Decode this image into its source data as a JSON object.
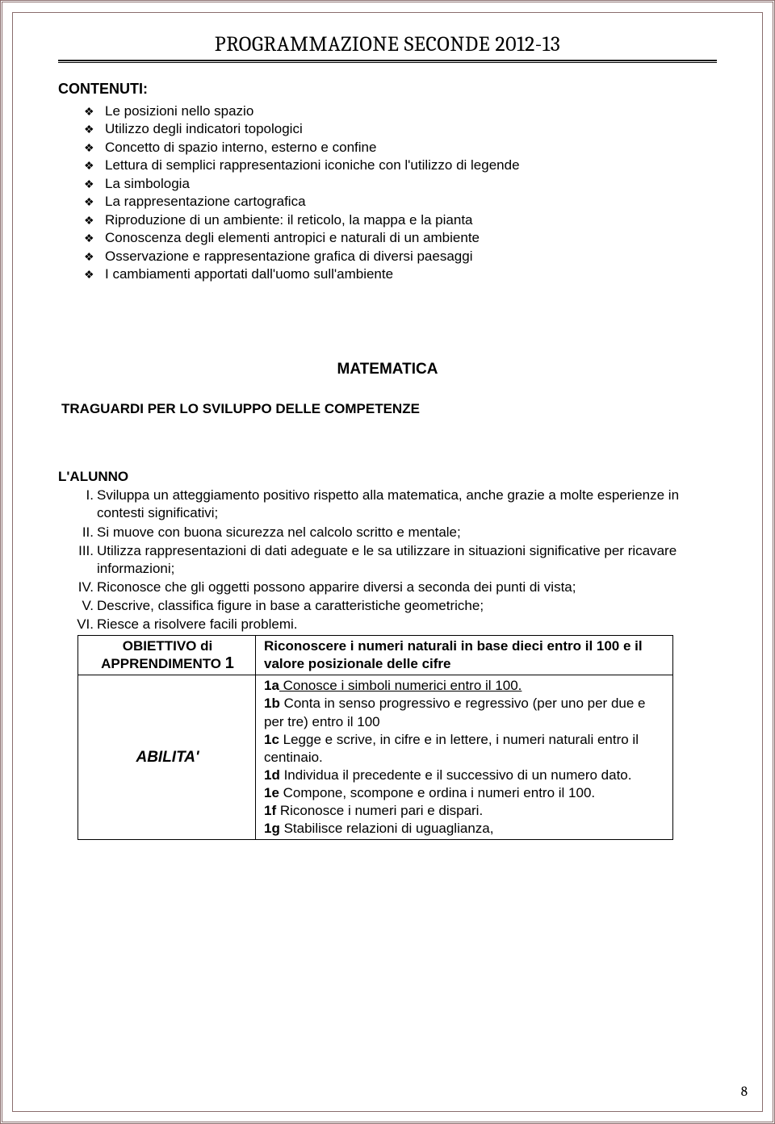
{
  "header": {
    "title": "PROGRAMMAZIONE SECONDE 2012-13"
  },
  "contenuti": {
    "heading": "CONTENUTI:",
    "items": [
      "Le posizioni nello spazio",
      "Utilizzo degli indicatori topologici",
      "Concetto di spazio interno, esterno e confine",
      "Lettura di semplici rappresentazioni iconiche con l'utilizzo di legende",
      "La simbologia",
      "La rappresentazione cartografica",
      "Riproduzione di un ambiente: il reticolo, la mappa e la pianta",
      "Conoscenza degli elementi antropici e naturali di un ambiente",
      "Osservazione e rappresentazione grafica di diversi paesaggi",
      "I cambiamenti apportati dall'uomo sull'ambiente"
    ]
  },
  "matematica": {
    "heading": "MATEMATICA",
    "subheading": "TRAGUARDI PER LO SVILUPPO DELLE COMPETENZE",
    "alunno_heading": "L'ALUNNO",
    "roman": [
      {
        "num": "I.",
        "text": "Sviluppa un atteggiamento positivo rispetto alla matematica, anche grazie a molte esperienze in contesti significativi;"
      },
      {
        "num": "II.",
        "text": "Si muove con buona sicurezza nel calcolo scritto e mentale;"
      },
      {
        "num": "III.",
        "text": "Utilizza rappresentazioni di dati adeguate e le sa utilizzare in situazioni significative per ricavare informazioni;"
      },
      {
        "num": "IV.",
        "text": "Riconosce che gli oggetti possono apparire diversi a seconda dei punti di vista;"
      },
      {
        "num": "V.",
        "text": "Descrive, classifica figure in base a caratteristiche geometriche;"
      },
      {
        "num": "VI.",
        "text": "Riesce a risolvere facili problemi."
      }
    ],
    "table": {
      "row1": {
        "left_line1": "OBIETTIVO di",
        "left_line2_a": "APPRENDIMENTO ",
        "left_line2_b": "1",
        "right": "Riconoscere i numeri naturali in base dieci entro il 100 e il valore posizionale delle cifre"
      },
      "row2": {
        "left": "ABILITA'",
        "items": [
          {
            "b": "1a",
            "u": " Conosce i simboli numerici entro il 100.",
            "rest": ""
          },
          {
            "b": "1b",
            "u": "",
            "rest": " Conta in senso progressivo e regressivo (per uno per due e per tre) entro il 100"
          },
          {
            "b": "1c",
            "u": "",
            "rest": " Legge e scrive, in cifre e in lettere, i numeri naturali entro il centinaio."
          },
          {
            "b": "1d",
            "u": "",
            "rest": " Individua il precedente e il successivo di un numero dato."
          },
          {
            "b": "1e",
            "u": "",
            "rest": " Compone, scompone e ordina i numeri entro il 100."
          },
          {
            "b": "1f",
            "u": "",
            "rest": " Riconosce i numeri pari e dispari."
          },
          {
            "b": "1g",
            "u": "",
            "rest": " Stabilisce relazioni di uguaglianza,"
          }
        ]
      }
    }
  },
  "page_number": "8"
}
